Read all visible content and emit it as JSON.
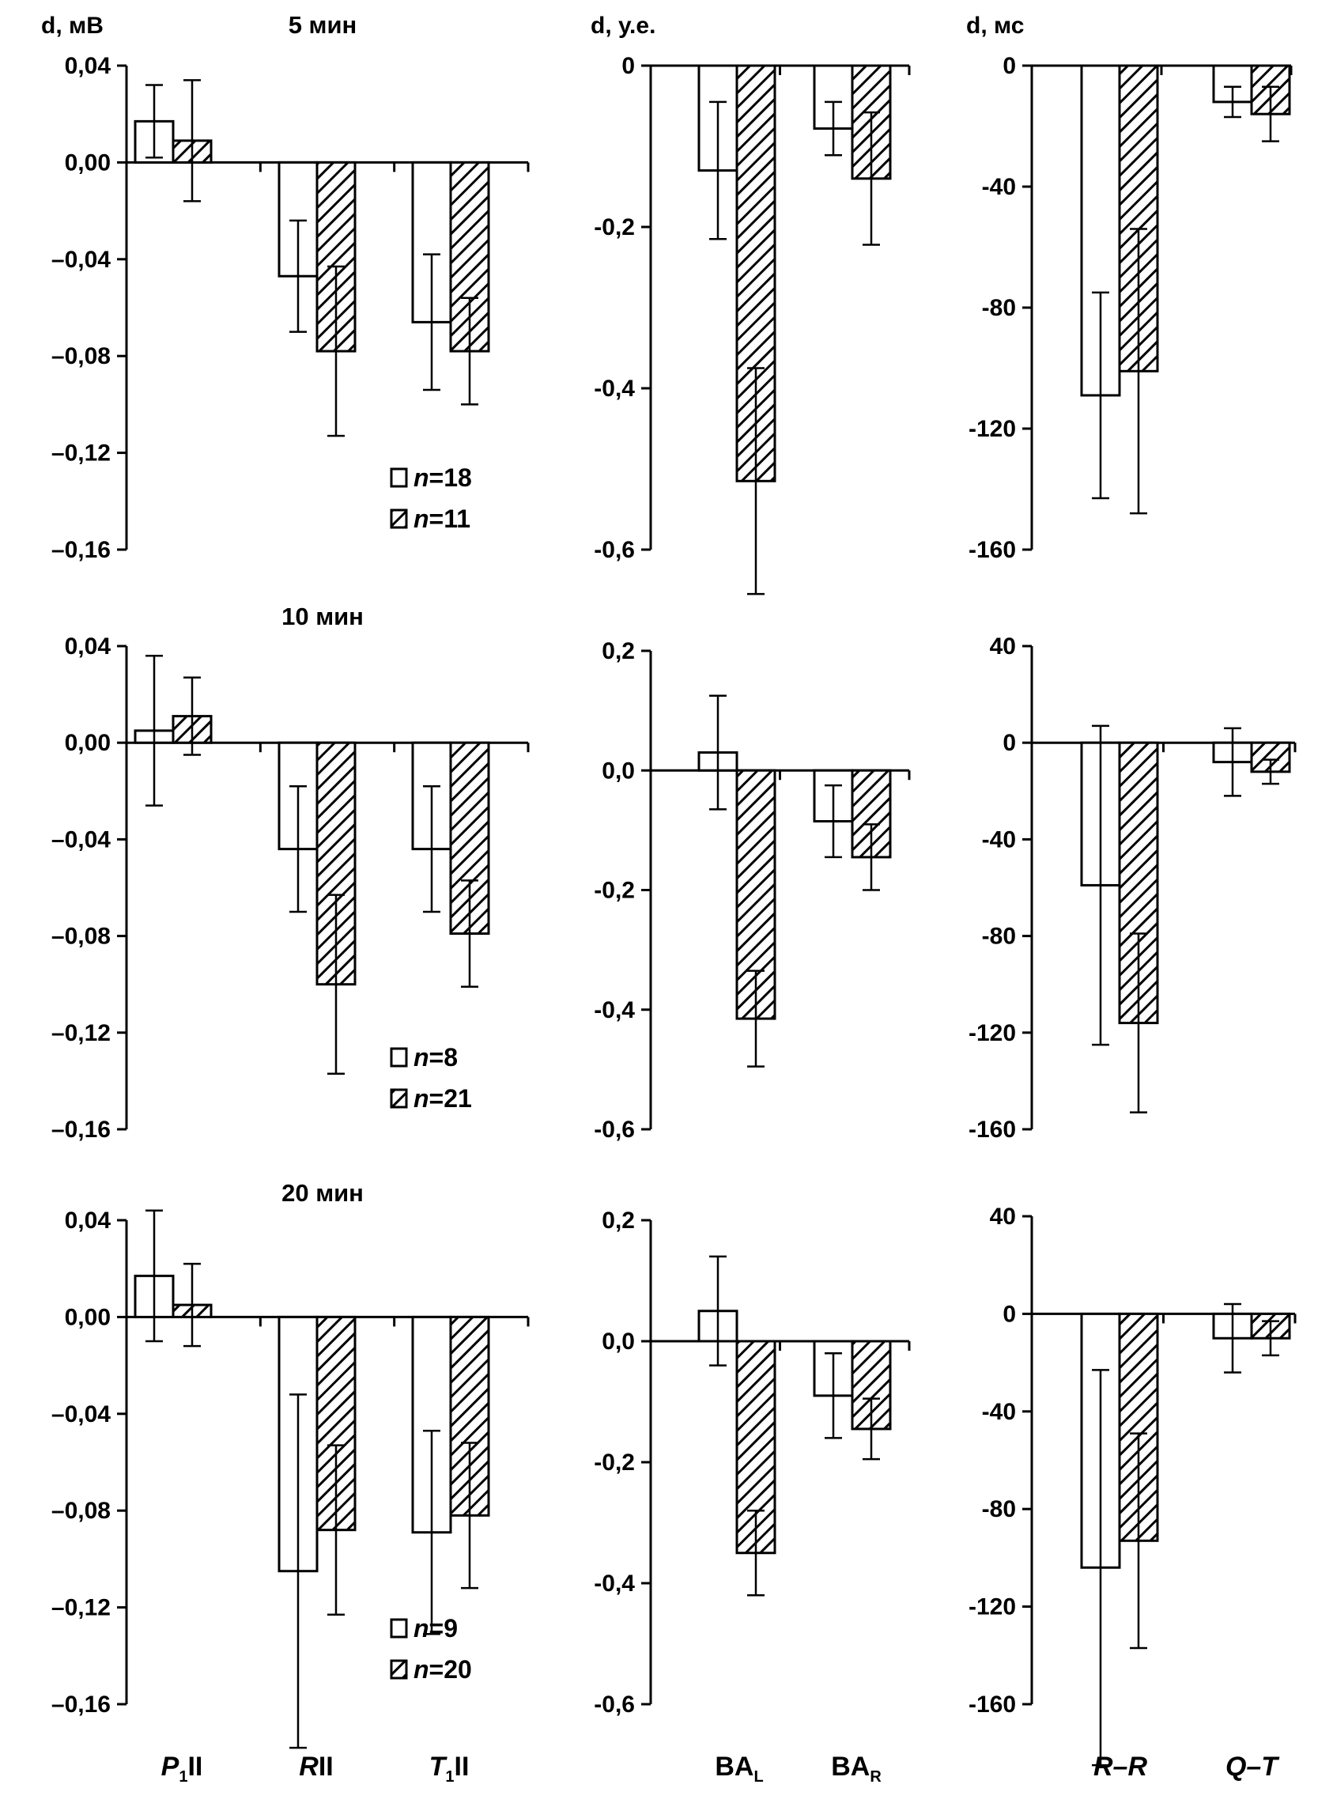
{
  "colors": {
    "ink": "#000000",
    "background": "#ffffff",
    "open_fill": "#ffffff"
  },
  "chart_data": [
    {
      "id": "p-5",
      "type": "bar",
      "title": "5 мин",
      "ylabel": "d, мВ",
      "ylim": [
        -0.16,
        0.04
      ],
      "yticks": [
        0.04,
        0.0,
        -0.04,
        -0.08,
        -0.12,
        -0.16
      ],
      "ytick_labels": [
        "0,04",
        "0,00",
        "–0,04",
        "–0,08",
        "–0,12",
        "–0,16"
      ],
      "categories": [
        "P1II",
        "RII",
        "T1II"
      ],
      "series": [
        {
          "name": "n=18",
          "style": "open",
          "values": [
            0.017,
            -0.047,
            -0.066
          ],
          "errors": [
            0.015,
            0.023,
            0.028
          ]
        },
        {
          "name": "n=11",
          "style": "hatched",
          "values": [
            0.009,
            -0.078,
            -0.078
          ],
          "errors": [
            0.025,
            0.035,
            0.022
          ]
        }
      ],
      "legend": [
        "n=18",
        "n=11"
      ]
    },
    {
      "id": "ba-5",
      "type": "bar",
      "ylabel": "d, у.е.",
      "ylim": [
        -0.6,
        0
      ],
      "yticks": [
        0,
        -0.2,
        -0.4,
        -0.6
      ],
      "ytick_labels": [
        "0",
        "-0,2",
        "-0,4",
        "-0,6"
      ],
      "categories": [
        "BAL",
        "BAR"
      ],
      "series": [
        {
          "name": "n=18",
          "style": "open",
          "values": [
            -0.13,
            -0.078
          ],
          "errors": [
            0.085,
            0.033
          ]
        },
        {
          "name": "n=11",
          "style": "hatched",
          "values": [
            -0.515,
            -0.14
          ],
          "errors": [
            0.14,
            0.082
          ]
        }
      ]
    },
    {
      "id": "ms-5",
      "type": "bar",
      "ylabel": "d, мс",
      "ylim": [
        -160,
        0
      ],
      "yticks": [
        0,
        -40,
        -80,
        -120,
        -160
      ],
      "ytick_labels": [
        "0",
        "-40",
        "-80",
        "-120",
        "-160"
      ],
      "categories": [
        "R–R",
        "Q–T"
      ],
      "series": [
        {
          "name": "n=18",
          "style": "open",
          "values": [
            -109,
            -12
          ],
          "errors": [
            34,
            5
          ]
        },
        {
          "name": "n=11",
          "style": "hatched",
          "values": [
            -101,
            -16
          ],
          "errors": [
            47,
            9
          ]
        }
      ]
    },
    {
      "id": "p-10",
      "type": "bar",
      "title": "10 мин",
      "ylim": [
        -0.16,
        0.04
      ],
      "yticks": [
        0.04,
        0.0,
        -0.04,
        -0.08,
        -0.12,
        -0.16
      ],
      "ytick_labels": [
        "0,04",
        "0,00",
        "–0,04",
        "–0,08",
        "–0,12",
        "–0,16"
      ],
      "categories": [
        "P1II",
        "RII",
        "T1II"
      ],
      "series": [
        {
          "name": "n=8",
          "style": "open",
          "values": [
            0.005,
            -0.044,
            -0.044
          ],
          "errors": [
            0.031,
            0.026,
            0.026
          ]
        },
        {
          "name": "n=21",
          "style": "hatched",
          "values": [
            0.011,
            -0.1,
            -0.079
          ],
          "errors": [
            0.016,
            0.037,
            0.022
          ]
        }
      ],
      "legend": [
        "n=8",
        "n=21"
      ]
    },
    {
      "id": "ba-10",
      "type": "bar",
      "ylim": [
        -0.6,
        0.2
      ],
      "yticks": [
        0.2,
        0.0,
        -0.2,
        -0.4,
        -0.6
      ],
      "ytick_labels": [
        "0,2",
        "0,0",
        "-0,2",
        "-0,4",
        "-0,6"
      ],
      "categories": [
        "BAL",
        "BAR"
      ],
      "series": [
        {
          "name": "n=8",
          "style": "open",
          "values": [
            0.03,
            -0.085
          ],
          "errors": [
            0.095,
            0.06
          ]
        },
        {
          "name": "n=21",
          "style": "hatched",
          "values": [
            -0.415,
            -0.145
          ],
          "errors": [
            0.08,
            0.055
          ]
        }
      ]
    },
    {
      "id": "ms-10",
      "type": "bar",
      "ylim": [
        -160,
        40
      ],
      "yticks": [
        40,
        0,
        -40,
        -80,
        -120,
        -160
      ],
      "ytick_labels": [
        "40",
        "0",
        "-40",
        "-80",
        "-120",
        "-160"
      ],
      "categories": [
        "R–R",
        "Q–T"
      ],
      "series": [
        {
          "name": "n=8",
          "style": "open",
          "values": [
            -59,
            -8
          ],
          "errors": [
            66,
            14
          ]
        },
        {
          "name": "n=21",
          "style": "hatched",
          "values": [
            -116,
            -12
          ],
          "errors": [
            37,
            5
          ]
        }
      ]
    },
    {
      "id": "p-20",
      "type": "bar",
      "title": "20 мин",
      "ylim": [
        -0.16,
        0.04
      ],
      "yticks": [
        0.04,
        0.0,
        -0.04,
        -0.08,
        -0.12,
        -0.16
      ],
      "ytick_labels": [
        "0,04",
        "0,00",
        "–0,04",
        "–0,08",
        "–0,12",
        "–0,16"
      ],
      "categories": [
        "P1II",
        "RII",
        "T1II"
      ],
      "series": [
        {
          "name": "n=9",
          "style": "open",
          "values": [
            0.017,
            -0.105,
            -0.089
          ],
          "errors": [
            0.027,
            0.073,
            0.042
          ]
        },
        {
          "name": "n=20",
          "style": "hatched",
          "values": [
            0.005,
            -0.088,
            -0.082
          ],
          "errors": [
            0.017,
            0.035,
            0.03
          ]
        }
      ],
      "legend": [
        "n=9",
        "n=20"
      ]
    },
    {
      "id": "ba-20",
      "type": "bar",
      "ylim": [
        -0.6,
        0.2
      ],
      "yticks": [
        0.2,
        0.0,
        -0.2,
        -0.4,
        -0.6
      ],
      "ytick_labels": [
        "0,2",
        "0,0",
        "-0,2",
        "-0,4",
        "-0,6"
      ],
      "categories": [
        "BAL",
        "BAR"
      ],
      "series": [
        {
          "name": "n=9",
          "style": "open",
          "values": [
            0.05,
            -0.09
          ],
          "errors": [
            0.09,
            0.07
          ]
        },
        {
          "name": "n=20",
          "style": "hatched",
          "values": [
            -0.35,
            -0.145
          ],
          "errors": [
            0.07,
            0.05
          ]
        }
      ]
    },
    {
      "id": "ms-20",
      "type": "bar",
      "ylim": [
        -160,
        40
      ],
      "yticks": [
        40,
        0,
        -40,
        -80,
        -120,
        -160
      ],
      "ytick_labels": [
        "40",
        "0",
        "-40",
        "-80",
        "-120",
        "-160"
      ],
      "categories": [
        "R–R",
        "Q–T"
      ],
      "series": [
        {
          "name": "n=9",
          "style": "open",
          "values": [
            -104,
            -10
          ],
          "errors": [
            81,
            14
          ]
        },
        {
          "name": "n=20",
          "style": "hatched",
          "values": [
            -93,
            -10
          ],
          "errors": [
            44,
            7
          ]
        }
      ]
    }
  ],
  "category_labels": {
    "p1": {
      "main": "P",
      "sub": "1",
      "suffix": "II"
    },
    "r": {
      "main": "R",
      "suffix": "II"
    },
    "t1": {
      "main": "T",
      "sub": "1",
      "suffix": "II"
    },
    "bal": {
      "main": "BA",
      "sub": "L"
    },
    "bar": {
      "main": "BA",
      "sub": "R"
    },
    "rr": "R–R",
    "qt": "Q–T"
  }
}
